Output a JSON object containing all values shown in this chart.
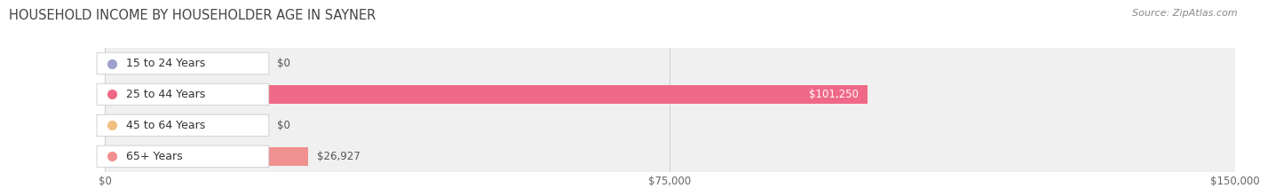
{
  "title": "HOUSEHOLD INCOME BY HOUSEHOLDER AGE IN SAYNER",
  "source": "Source: ZipAtlas.com",
  "categories": [
    "15 to 24 Years",
    "25 to 44 Years",
    "45 to 64 Years",
    "65+ Years"
  ],
  "values": [
    0,
    101250,
    0,
    26927
  ],
  "bar_colors": [
    "#a0a0cc",
    "#f06888",
    "#f0c080",
    "#f09090"
  ],
  "value_labels": [
    "$0",
    "$101,250",
    "$0",
    "$26,927"
  ],
  "xlim": [
    0,
    150000
  ],
  "xtick_values": [
    0,
    75000,
    150000
  ],
  "xtick_labels": [
    "$0",
    "$75,000",
    "$150,000"
  ],
  "title_fontsize": 10.5,
  "source_fontsize": 8,
  "label_fontsize": 9,
  "value_fontsize": 8.5,
  "bar_height": 0.62,
  "background_color": "#ffffff",
  "row_bg_light": "#f5f5f5",
  "row_bg_dark": "#ebebeb"
}
